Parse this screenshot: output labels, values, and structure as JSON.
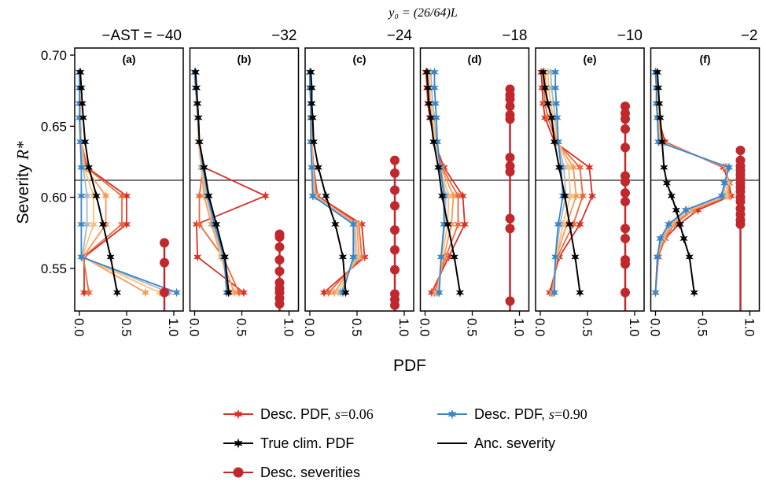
{
  "figure": {
    "top_title": "y₀ = (26/64)L",
    "xlabel": "PDF",
    "ylabel_main": "Severity ",
    "ylabel_italic": "R*"
  },
  "legend": [
    {
      "label": "Desc. PDF, ",
      "italic": "s",
      "suffix": "=0.06",
      "color": "#d73027",
      "marker": "star"
    },
    {
      "label": "Desc. PDF, ",
      "italic": "s",
      "suffix": "=0.90",
      "color": "#3a86c8",
      "marker": "star"
    },
    {
      "label": "True clim. PDF",
      "italic": "",
      "suffix": "",
      "color": "#000000",
      "marker": "star"
    },
    {
      "label": "Anc. severity",
      "italic": "",
      "suffix": "",
      "color": "#000000",
      "marker": "none"
    },
    {
      "label": "Desc. severities",
      "italic": "",
      "suffix": "",
      "color": "#c0282d",
      "marker": "dot"
    }
  ],
  "colors": {
    "s_low": "#d73027",
    "s_mid": "#fdae61",
    "s_high": "#3a86c8",
    "true_pdf": "#000000",
    "desc_severities": "#c0282d"
  },
  "chart_data": {
    "type": "line",
    "ylabel": "Severity R*",
    "xlabel": "PDF",
    "ylim": [
      0.52,
      0.705
    ],
    "xlim": [
      -0.05,
      1.1
    ],
    "yticks": [
      0.55,
      0.6,
      0.65,
      0.7
    ],
    "xticks": [
      0.0,
      0.5,
      1.0
    ],
    "anc_severity": 0.612,
    "grid": false,
    "legend_position": "bottom",
    "panels": [
      {
        "label": "(a)",
        "ast_title": "−AST = −40",
        "y": [
          0.533,
          0.558,
          0.581,
          0.601,
          0.621,
          0.639,
          0.656,
          0.666,
          0.677,
          0.688
        ],
        "true_pdf": [
          0.4,
          0.33,
          0.25,
          0.18,
          0.1,
          0.06,
          0.04,
          0.03,
          0.02,
          0.01
        ],
        "desc_pdf": [
          {
            "s": 0.06,
            "color": "#d73027",
            "x": [
              0.05,
              0.05,
              0.5,
              0.5,
              0.08,
              0.02,
              0.01,
              0.01,
              0.0,
              0.0
            ]
          },
          {
            "s": 0.2,
            "color": "#ea6a3e",
            "x": [
              0.1,
              0.04,
              0.45,
              0.45,
              0.07,
              0.02,
              0.01,
              0.01,
              0.0,
              0.0
            ]
          },
          {
            "s": 0.35,
            "color": "#f79a5a",
            "x": [
              0.7,
              0.04,
              0.28,
              0.28,
              0.06,
              0.02,
              0.01,
              0.01,
              0.0,
              0.0
            ]
          },
          {
            "s": 0.5,
            "color": "#fdc07a",
            "x": [
              0.85,
              0.03,
              0.15,
              0.15,
              0.05,
              0.02,
              0.01,
              0.0,
              0.0,
              0.0
            ]
          },
          {
            "s": 0.7,
            "color": "#a6b9c8",
            "x": [
              0.95,
              0.03,
              0.08,
              0.08,
              0.04,
              0.01,
              0.01,
              0.0,
              0.0,
              0.0
            ]
          },
          {
            "s": 0.9,
            "color": "#3a86c8",
            "x": [
              1.03,
              0.02,
              0.02,
              0.02,
              0.02,
              0.01,
              0.0,
              0.0,
              0.0,
              0.0
            ]
          }
        ],
        "desc_severities": [
          0.533,
          0.554,
          0.568
        ]
      },
      {
        "label": "(b)",
        "ast_title": "−32",
        "y": [
          0.533,
          0.558,
          0.581,
          0.601,
          0.621,
          0.639,
          0.656,
          0.666,
          0.677,
          0.688
        ],
        "true_pdf": [
          0.36,
          0.32,
          0.23,
          0.15,
          0.1,
          0.05,
          0.04,
          0.03,
          0.02,
          0.01
        ],
        "desc_pdf": [
          {
            "s": 0.06,
            "color": "#d73027",
            "x": [
              0.52,
              0.03,
              0.02,
              0.75,
              0.1,
              0.05,
              0.04,
              0.03,
              0.02,
              0.0
            ]
          },
          {
            "s": 0.2,
            "color": "#ea6a3e",
            "x": [
              0.47,
              0.3,
              0.05,
              0.05,
              0.09,
              0.05,
              0.04,
              0.03,
              0.02,
              0.0
            ]
          },
          {
            "s": 0.35,
            "color": "#f79a5a",
            "x": [
              0.42,
              0.28,
              0.18,
              0.1,
              0.07,
              0.04,
              0.03,
              0.02,
              0.02,
              0.0
            ]
          },
          {
            "s": 0.5,
            "color": "#fdc07a",
            "x": [
              0.38,
              0.28,
              0.2,
              0.12,
              0.07,
              0.04,
              0.03,
              0.02,
              0.01,
              0.0
            ]
          },
          {
            "s": 0.7,
            "color": "#a6b9c8",
            "x": [
              0.36,
              0.3,
              0.2,
              0.13,
              0.08,
              0.05,
              0.03,
              0.02,
              0.01,
              0.0
            ]
          },
          {
            "s": 0.9,
            "color": "#3a86c8",
            "x": [
              0.34,
              0.31,
              0.21,
              0.14,
              0.09,
              0.05,
              0.04,
              0.03,
              0.01,
              0.0
            ]
          }
        ],
        "desc_severities": [
          0.525,
          0.529,
          0.533,
          0.536,
          0.54,
          0.548,
          0.556,
          0.565,
          0.572,
          0.574
        ]
      },
      {
        "label": "(c)",
        "ast_title": "−24",
        "y": [
          0.533,
          0.558,
          0.581,
          0.601,
          0.621,
          0.639,
          0.656,
          0.666,
          0.677,
          0.688
        ],
        "true_pdf": [
          0.38,
          0.35,
          0.27,
          0.17,
          0.09,
          0.04,
          0.03,
          0.02,
          0.02,
          0.01
        ],
        "desc_pdf": [
          {
            "s": 0.06,
            "color": "#d73027",
            "x": [
              0.15,
              0.58,
              0.55,
              0.08,
              0.04,
              0.02,
              0.02,
              0.01,
              0.01,
              0.0
            ]
          },
          {
            "s": 0.2,
            "color": "#ea6a3e",
            "x": [
              0.2,
              0.55,
              0.52,
              0.07,
              0.04,
              0.02,
              0.02,
              0.01,
              0.01,
              0.0
            ]
          },
          {
            "s": 0.35,
            "color": "#f79a5a",
            "x": [
              0.26,
              0.52,
              0.5,
              0.06,
              0.03,
              0.02,
              0.01,
              0.01,
              0.01,
              0.0
            ]
          },
          {
            "s": 0.5,
            "color": "#fdc07a",
            "x": [
              0.3,
              0.5,
              0.48,
              0.05,
              0.03,
              0.02,
              0.01,
              0.01,
              0.0,
              0.0
            ]
          },
          {
            "s": 0.7,
            "color": "#a6b9c8",
            "x": [
              0.33,
              0.48,
              0.47,
              0.04,
              0.03,
              0.01,
              0.01,
              0.01,
              0.0,
              0.0
            ]
          },
          {
            "s": 0.9,
            "color": "#3a86c8",
            "x": [
              0.35,
              0.46,
              0.46,
              0.03,
              0.02,
              0.01,
              0.01,
              0.01,
              0.0,
              0.0
            ]
          }
        ],
        "desc_severities": [
          0.524,
          0.528,
          0.532,
          0.549,
          0.563,
          0.577,
          0.594,
          0.605,
          0.617,
          0.626
        ]
      },
      {
        "label": "(d)",
        "ast_title": "−18",
        "y": [
          0.533,
          0.558,
          0.581,
          0.601,
          0.621,
          0.639,
          0.656,
          0.666,
          0.677,
          0.688
        ],
        "true_pdf": [
          0.37,
          0.31,
          0.24,
          0.18,
          0.14,
          0.09,
          0.06,
          0.04,
          0.03,
          0.02
        ],
        "desc_pdf": [
          {
            "s": 0.06,
            "color": "#d73027",
            "x": [
              0.07,
              0.25,
              0.42,
              0.4,
              0.2,
              0.1,
              0.05,
              0.03,
              0.02,
              0.01
            ]
          },
          {
            "s": 0.2,
            "color": "#ea6a3e",
            "x": [
              0.1,
              0.22,
              0.35,
              0.35,
              0.18,
              0.1,
              0.06,
              0.04,
              0.03,
              0.02
            ]
          },
          {
            "s": 0.35,
            "color": "#f79a5a",
            "x": [
              0.12,
              0.2,
              0.28,
              0.3,
              0.17,
              0.1,
              0.07,
              0.05,
              0.04,
              0.03
            ]
          },
          {
            "s": 0.5,
            "color": "#fdc07a",
            "x": [
              0.13,
              0.18,
              0.24,
              0.25,
              0.16,
              0.11,
              0.08,
              0.06,
              0.05,
              0.04
            ]
          },
          {
            "s": 0.7,
            "color": "#a6b9c8",
            "x": [
              0.14,
              0.17,
              0.21,
              0.22,
              0.16,
              0.12,
              0.1,
              0.08,
              0.07,
              0.06
            ]
          },
          {
            "s": 0.9,
            "color": "#3a86c8",
            "x": [
              0.15,
              0.17,
              0.2,
              0.2,
              0.16,
              0.13,
              0.12,
              0.11,
              0.1,
              0.1
            ]
          }
        ],
        "desc_severities": [
          0.527,
          0.578,
          0.585,
          0.618,
          0.622,
          0.628,
          0.655,
          0.658,
          0.664,
          0.669,
          0.672,
          0.676
        ]
      },
      {
        "label": "(e)",
        "ast_title": "−10",
        "y": [
          0.533,
          0.558,
          0.581,
          0.601,
          0.621,
          0.639,
          0.656,
          0.666,
          0.677,
          0.688
        ],
        "true_pdf": [
          0.42,
          0.37,
          0.31,
          0.26,
          0.2,
          0.15,
          0.12,
          0.08,
          0.05,
          0.03
        ],
        "desc_pdf": [
          {
            "s": 0.06,
            "color": "#d73027",
            "x": [
              0.1,
              0.2,
              0.42,
              0.55,
              0.52,
              0.15,
              0.05,
              0.03,
              0.02,
              0.01
            ]
          },
          {
            "s": 0.2,
            "color": "#ea6a3e",
            "x": [
              0.12,
              0.18,
              0.35,
              0.45,
              0.42,
              0.17,
              0.08,
              0.05,
              0.04,
              0.03
            ]
          },
          {
            "s": 0.35,
            "color": "#f79a5a",
            "x": [
              0.13,
              0.17,
              0.28,
              0.38,
              0.35,
              0.18,
              0.11,
              0.08,
              0.06,
              0.05
            ]
          },
          {
            "s": 0.5,
            "color": "#fdc07a",
            "x": [
              0.14,
              0.17,
              0.24,
              0.32,
              0.3,
              0.19,
              0.14,
              0.11,
              0.09,
              0.08
            ]
          },
          {
            "s": 0.7,
            "color": "#a6b9c8",
            "x": [
              0.14,
              0.16,
              0.21,
              0.27,
              0.25,
              0.19,
              0.16,
              0.14,
              0.12,
              0.11
            ]
          },
          {
            "s": 0.9,
            "color": "#3a86c8",
            "x": [
              0.15,
              0.16,
              0.19,
              0.24,
              0.22,
              0.19,
              0.18,
              0.17,
              0.16,
              0.16
            ]
          }
        ],
        "desc_severities": [
          0.533,
          0.553,
          0.556,
          0.571,
          0.578,
          0.597,
          0.603,
          0.611,
          0.615,
          0.635,
          0.648,
          0.655,
          0.659,
          0.664
        ]
      },
      {
        "label": "(f)",
        "ast_title": "−2",
        "y": [
          0.533,
          0.558,
          0.571,
          0.581,
          0.591,
          0.601,
          0.61,
          0.621,
          0.639,
          0.656,
          0.666,
          0.677,
          0.688
        ],
        "true_pdf": [
          0.41,
          0.36,
          0.3,
          0.26,
          0.22,
          0.17,
          0.12,
          0.09,
          0.07,
          0.05,
          0.04,
          0.03,
          0.02
        ],
        "desc_pdf": [
          {
            "s": 0.06,
            "color": "#d73027",
            "x": [
              0.0,
              0.03,
              0.1,
              0.25,
              0.45,
              0.8,
              0.78,
              0.72,
              0.1,
              0.03,
              0.02,
              0.01,
              0.0
            ]
          },
          {
            "s": 0.2,
            "color": "#ea6a3e",
            "x": [
              0.0,
              0.03,
              0.1,
              0.2,
              0.4,
              0.78,
              0.78,
              0.74,
              0.08,
              0.03,
              0.02,
              0.01,
              0.0
            ]
          },
          {
            "s": 0.35,
            "color": "#f79a5a",
            "x": [
              0.0,
              0.02,
              0.08,
              0.18,
              0.38,
              0.76,
              0.76,
              0.75,
              0.07,
              0.03,
              0.02,
              0.01,
              0.0
            ]
          },
          {
            "s": 0.5,
            "color": "#fdc07a",
            "x": [
              0.0,
              0.02,
              0.07,
              0.16,
              0.35,
              0.74,
              0.76,
              0.76,
              0.05,
              0.02,
              0.02,
              0.01,
              0.0
            ]
          },
          {
            "s": 0.7,
            "color": "#a6b9c8",
            "x": [
              0.0,
              0.02,
              0.06,
              0.15,
              0.33,
              0.72,
              0.74,
              0.77,
              0.04,
              0.02,
              0.01,
              0.01,
              0.0
            ]
          },
          {
            "s": 0.9,
            "color": "#3a86c8",
            "x": [
              0.0,
              0.02,
              0.05,
              0.14,
              0.32,
              0.7,
              0.73,
              0.78,
              0.03,
              0.02,
              0.01,
              0.01,
              0.0
            ]
          }
        ],
        "desc_severities": [
          0.581,
          0.584,
          0.588,
          0.592,
          0.597,
          0.6,
          0.604,
          0.607,
          0.61,
          0.613,
          0.616,
          0.619,
          0.622,
          0.626,
          0.633
        ]
      }
    ]
  }
}
